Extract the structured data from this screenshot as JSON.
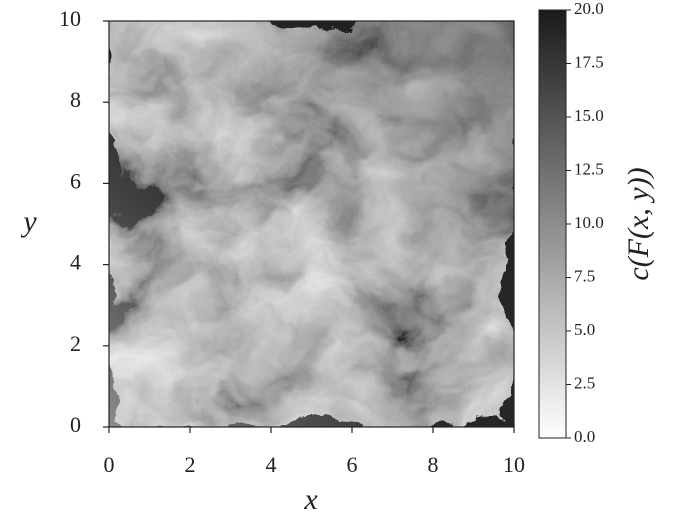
{
  "chart_data": {
    "type": "heatmap",
    "x_label": "x",
    "y_label": "y",
    "xlim": [
      0,
      10
    ],
    "ylim": [
      0,
      10
    ],
    "xticks": [
      0,
      2,
      4,
      6,
      8,
      10
    ],
    "yticks": [
      0,
      2,
      4,
      6,
      8,
      10
    ],
    "colorbar": {
      "label": "c(F(x, y))",
      "lim": [
        0,
        20
      ],
      "colors": [
        "#ffffff",
        "#1a1a1a"
      ],
      "ticks": [
        {
          "value": 0,
          "label": "0.0"
        },
        {
          "value": 2.5,
          "label": "2.5"
        },
        {
          "value": 5,
          "label": "5.0"
        },
        {
          "value": 7.5,
          "label": "7.5"
        },
        {
          "value": 10,
          "label": "10.0"
        },
        {
          "value": 12.5,
          "label": "12.5"
        },
        {
          "value": 15,
          "label": "15.0"
        },
        {
          "value": 17.5,
          "label": "17.5"
        },
        {
          "value": 20,
          "label": "20.0"
        }
      ]
    }
  }
}
